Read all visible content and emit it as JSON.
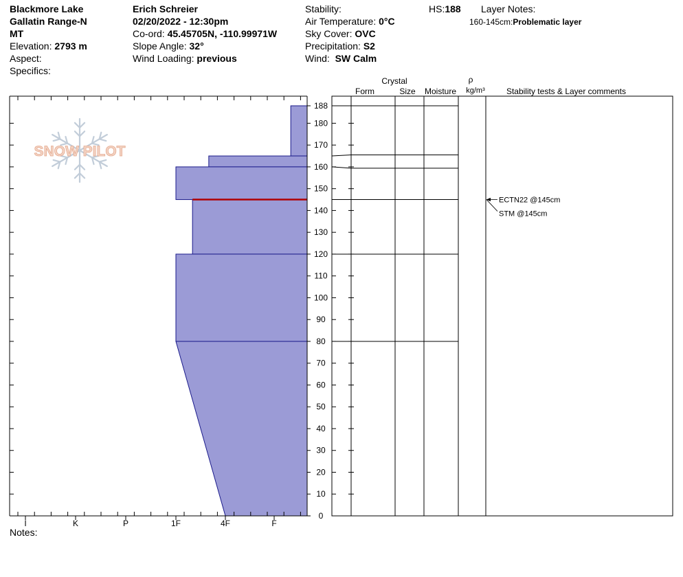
{
  "header": {
    "location": "Blackmore Lake",
    "range": "Gallatin Range-N",
    "state": "MT",
    "elevation_label": "Elevation:",
    "elevation_value": "2793 m",
    "aspect_label": "Aspect:",
    "aspect_value": "",
    "specifics_label": "Specifics:",
    "specifics_value": "",
    "observer": "Erich  Schreier",
    "datetime": "02/20/2022 - 12:30pm",
    "coord_label": "Co-ord:",
    "coord_value": "45.45705N, -110.99971W",
    "slope_label": "Slope Angle:",
    "slope_value": "32°",
    "wind_loading_label": "Wind Loading:",
    "wind_loading_value": "previous",
    "stability_label": "Stability:",
    "stability_value": "",
    "air_temp_label": "Air Temperature:",
    "air_temp_value": "0°C",
    "sky_label": "Sky Cover:",
    "sky_value": "OVC",
    "precip_label": "Precipitation:",
    "precip_value": "S2",
    "wind_label": "Wind:",
    "wind_value": "SW Calm",
    "hs_label": "HS:",
    "hs_value": "188",
    "layer_notes_label": "Layer Notes:",
    "layer_note_range": "160-145cm:",
    "layer_note_text": "Problematic layer"
  },
  "columns": {
    "crystal": "Crystal",
    "form": "Form",
    "size": "Size",
    "moisture": "Moisture",
    "rho": "ρ",
    "density_unit": "kg/m³",
    "comments": "Stability tests & Layer comments"
  },
  "logo": {
    "text": "SNOW PILOT"
  },
  "notes_label": "Notes:",
  "colors": {
    "layer_fill": "#9b9bd6",
    "layer_edge": "#1a1a8a",
    "problem_layer": "#b00000"
  },
  "chart_data": {
    "type": "area",
    "x_axis": {
      "label": "",
      "ticks": [
        "I",
        "K",
        "P",
        "1F",
        "4F",
        "F"
      ]
    },
    "y_axis": {
      "label": "",
      "range": [
        0,
        188
      ],
      "unit": "cm",
      "ticks": [
        0,
        10,
        20,
        30,
        40,
        50,
        60,
        70,
        80,
        90,
        100,
        110,
        120,
        130,
        140,
        150,
        160,
        170,
        180,
        188
      ]
    },
    "hardness_profile": [
      {
        "top": 188,
        "bottom": 165,
        "hardness": "F+"
      },
      {
        "top": 165,
        "bottom": 160,
        "hardness": "4F-"
      },
      {
        "top": 160,
        "bottom": 145,
        "hardness": "1F"
      },
      {
        "top": 145,
        "bottom": 120,
        "hardness": "1F+"
      },
      {
        "top": 120,
        "bottom": 80,
        "hardness": "1F"
      },
      {
        "top": 80,
        "bottom": 0,
        "hardness_top": "1F",
        "hardness_bottom": "4F"
      }
    ],
    "layer_boundaries": [
      188,
      165,
      160,
      145,
      120,
      80,
      0
    ],
    "problematic_boundary": 145,
    "stability_tests": [
      "ECTN22 @145cm",
      "STM @145cm"
    ]
  }
}
